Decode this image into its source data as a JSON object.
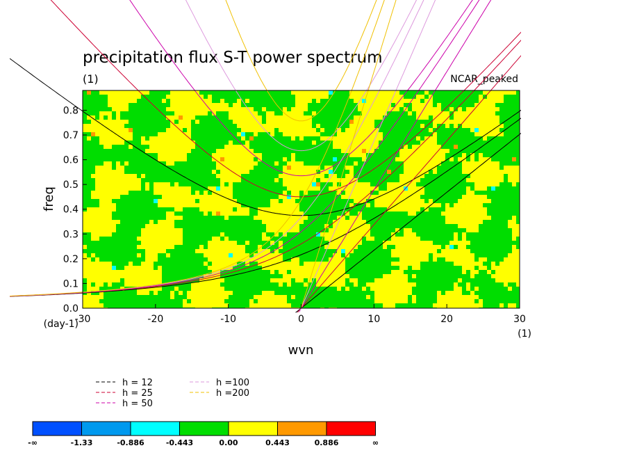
{
  "chart_data": {
    "type": "heatmap",
    "title": "precipitation flux S-T power spectrum",
    "units_label": "(1)",
    "model_label": "NCAR_peaked",
    "xlabel": "wvn",
    "ylabel": "freq",
    "x_unit_label": "(1)",
    "y_unit_label": "(day-1)",
    "xlim": [
      -30,
      30
    ],
    "ylim": [
      0,
      0.88
    ],
    "x_ticks": [
      "-30",
      "-20",
      "-10",
      "0",
      "10",
      "20",
      "30"
    ],
    "y_ticks": [
      "0.0",
      "0.1",
      "0.2",
      "0.3",
      "0.4",
      "0.5",
      "0.6",
      "0.7",
      "0.8"
    ],
    "dispersion_curves": [
      {
        "label": "h = 12",
        "h": 12,
        "color": "#000000"
      },
      {
        "label": "h = 25",
        "h": 25,
        "color": "#cc0033"
      },
      {
        "label": "h = 50",
        "h": 50,
        "color": "#cc00aa"
      },
      {
        "label": "h =100",
        "h": 100,
        "color": "#dd99dd"
      },
      {
        "label": "h =200",
        "h": 200,
        "color": "#f0c000"
      }
    ],
    "colorbar": {
      "colors": [
        "#0050ff",
        "#0099ee",
        "#00ffff",
        "#00dd00",
        "#ffff00",
        "#ff9900",
        "#ff0000"
      ],
      "labels": [
        "-∞",
        "-1.33",
        "-0.886",
        "-0.443",
        "0.00",
        "0.443",
        "0.886",
        "∞"
      ]
    }
  }
}
